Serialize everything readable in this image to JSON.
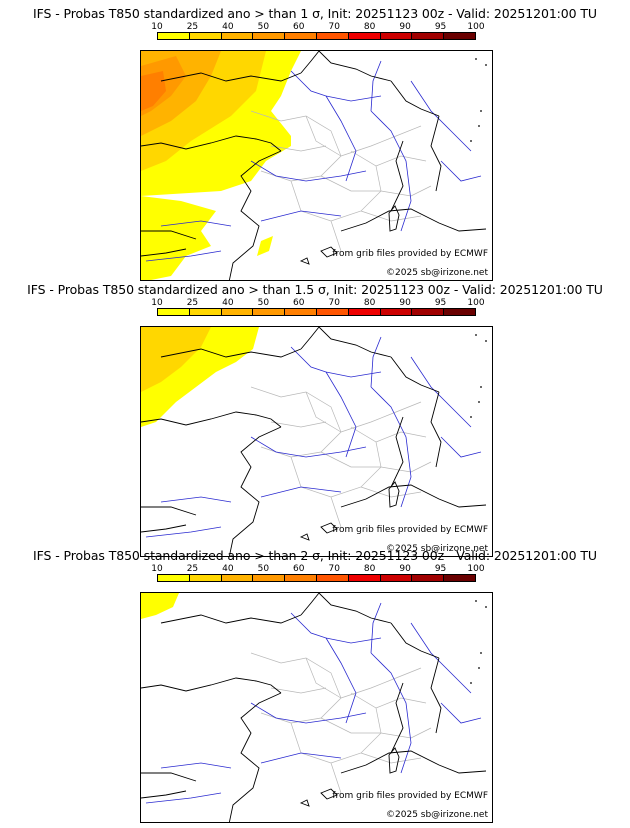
{
  "colorbar": {
    "ticks": [
      "10",
      "25",
      "40",
      "50",
      "60",
      "70",
      "80",
      "90",
      "95",
      "100"
    ],
    "colors": [
      "#ffff00",
      "#ffd700",
      "#ffb300",
      "#ff9900",
      "#ff7f00",
      "#ff5500",
      "#ee0000",
      "#cc0000",
      "#a00000",
      "#6a0000"
    ]
  },
  "colors": {
    "land_border": "#000000",
    "regions": "#b8b8b8",
    "rivers": "#2a2ad0"
  },
  "panels": [
    {
      "title": "IFS - Probas T850  standardized ano > than 1 σ, Init: 20251123 00z - Valid: 20251201:00 TU",
      "source_text": "from grib files provided by ECMWF",
      "copyright": "©2025 sb@irizone.net",
      "anomaly_level": "1 σ"
    },
    {
      "title": "IFS - Probas T850  standardized ano > than 1.5 σ, Init: 20251123 00z - Valid: 20251201:00 TU",
      "source_text": "from grib files provided by ECMWF",
      "copyright": "©2025 sb@irizone.net",
      "anomaly_level": "1.5 σ"
    },
    {
      "title": "IFS - Probas T850  standardized ano > than 2 σ, Init: 20251123 00z - Valid: 20251201:00 TU",
      "source_text": "from grib files provided by ECMWF",
      "copyright": "©2025 sb@irizone.net",
      "anomaly_level": "2 σ"
    }
  ]
}
